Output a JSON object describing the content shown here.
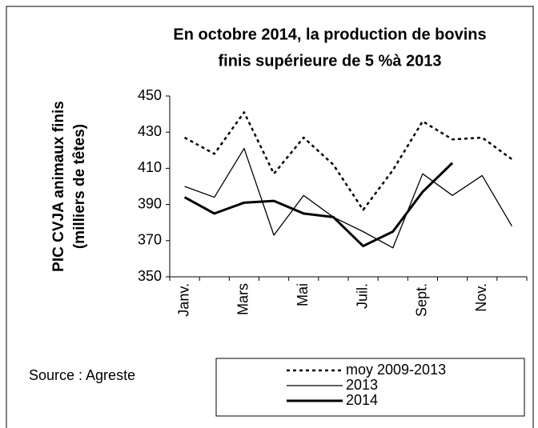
{
  "chart_data": {
    "type": "line",
    "title": [
      "En octobre 2014, la production de bovins",
      "finis supérieure de 5 %à 2013"
    ],
    "ylabel": [
      "PIC CVJA animaux finis",
      "(milliers de têtes)"
    ],
    "source": "Source : Agreste",
    "categories": [
      "Janv.",
      null,
      "Mars",
      null,
      "Mai",
      null,
      "Juil.",
      null,
      "Sept.",
      null,
      "Nov.",
      null
    ],
    "series": [
      {
        "name": "moy 2009-2013",
        "color": "#000000",
        "style": "dotted",
        "line_width": 2.5,
        "values": [
          427,
          418,
          441,
          407,
          427,
          412,
          387,
          409,
          436,
          426,
          427,
          415
        ]
      },
      {
        "name": "2013",
        "color": "#000000",
        "style": "solid",
        "line_width": 1.3,
        "values": [
          400,
          394,
          421,
          373,
          395,
          383,
          375,
          366,
          407,
          395,
          406,
          378
        ]
      },
      {
        "name": "2014",
        "color": "#000000",
        "style": "solid",
        "line_width": 3,
        "values": [
          394,
          385,
          391,
          392,
          385,
          383,
          367,
          375,
          397,
          413,
          null,
          null
        ]
      }
    ],
    "ylim": [
      350,
      450
    ],
    "yticks": [
      350,
      370,
      390,
      410,
      430,
      450
    ],
    "grid": false
  }
}
